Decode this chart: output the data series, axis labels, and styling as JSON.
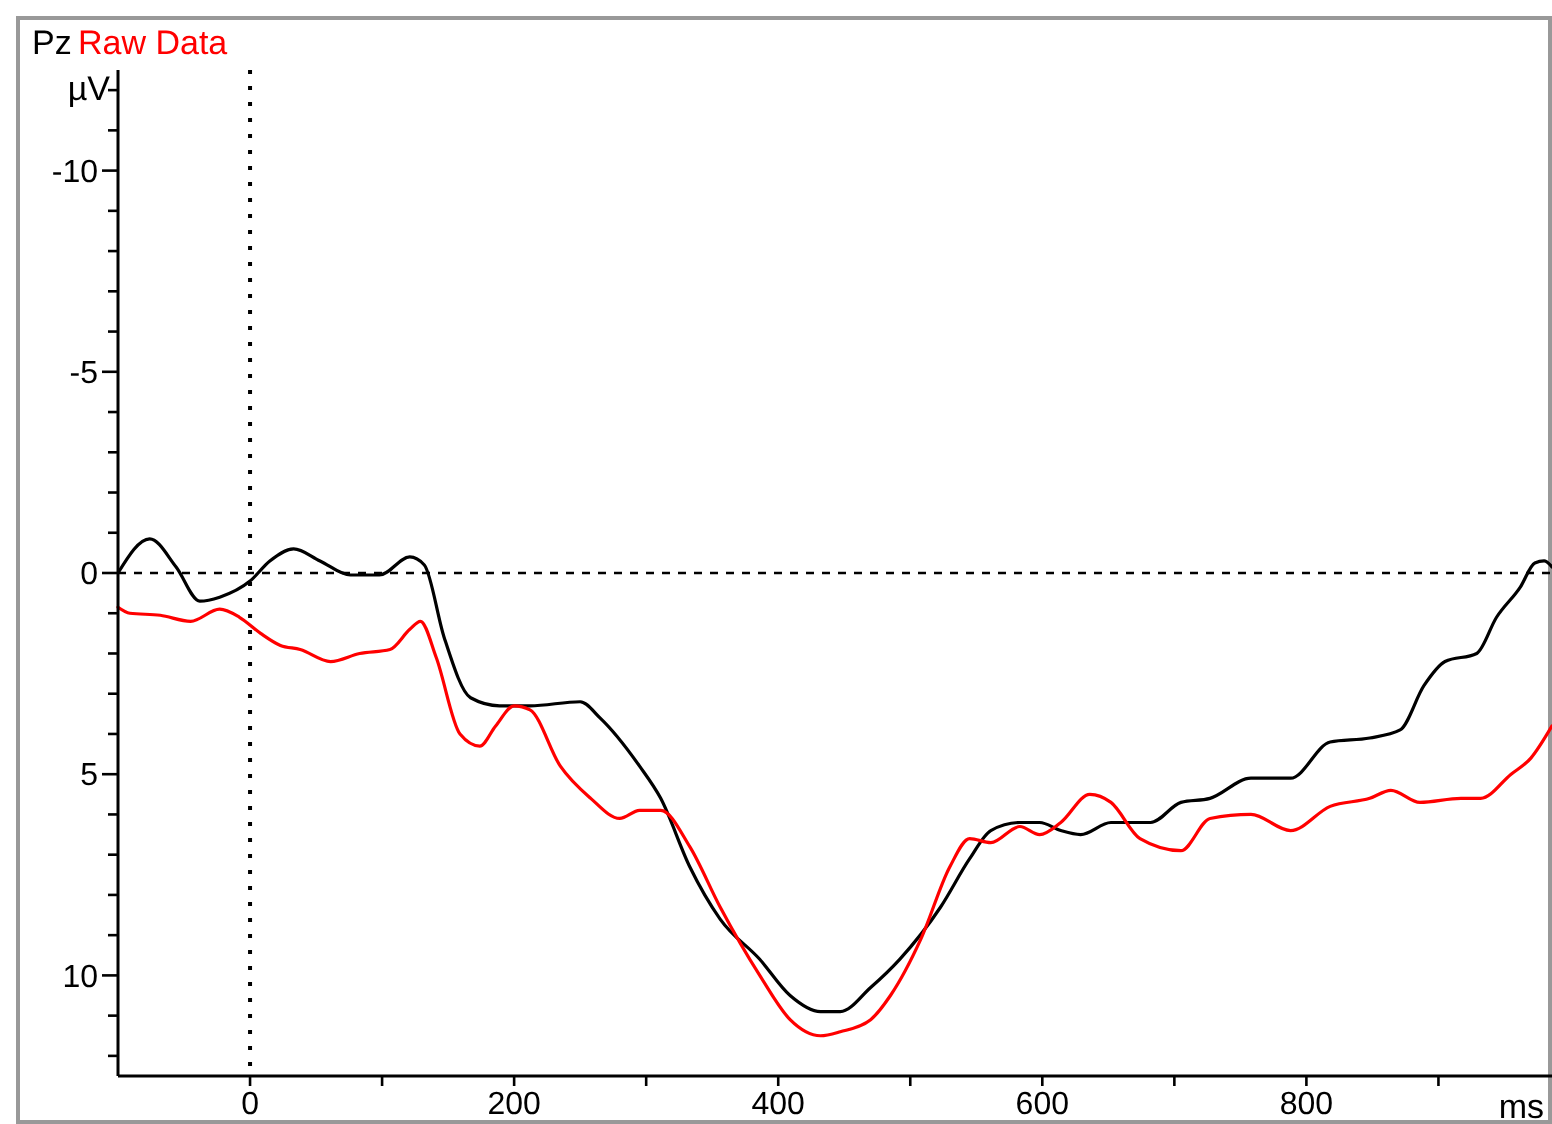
{
  "chart_data": {
    "type": "line",
    "title": "Pz",
    "xlabel": "ms",
    "ylabel": "µV",
    "xlim": [
      -100,
      986
    ],
    "ylim": [
      12.5,
      -12.5
    ],
    "xticks": [
      {
        "value": 0,
        "label": "0"
      },
      {
        "value": 100,
        "label": null
      },
      {
        "value": 200,
        "label": "200"
      },
      {
        "value": 300,
        "label": null
      },
      {
        "value": 400,
        "label": "400"
      },
      {
        "value": 500,
        "label": null
      },
      {
        "value": 600,
        "label": "600"
      },
      {
        "value": 700,
        "label": null
      },
      {
        "value": 800,
        "label": "800"
      },
      {
        "value": 900,
        "label": null
      }
    ],
    "yticks": [
      {
        "value": -12,
        "label": null
      },
      {
        "value": -11,
        "label": null
      },
      -10,
      {
        "value": -9,
        "label": null
      },
      {
        "value": -8,
        "label": null
      },
      {
        "value": -7,
        "label": null
      },
      {
        "value": -6,
        "label": null
      },
      -5,
      {
        "value": -4,
        "label": null
      },
      {
        "value": -3,
        "label": null
      },
      {
        "value": -2,
        "label": null
      },
      {
        "value": -1,
        "label": null
      },
      0,
      {
        "value": 1,
        "label": null
      },
      {
        "value": 2,
        "label": null
      },
      {
        "value": 3,
        "label": null
      },
      {
        "value": 4,
        "label": null
      },
      5,
      {
        "value": 6,
        "label": null
      },
      {
        "value": 7,
        "label": null
      },
      {
        "value": 8,
        "label": null
      },
      {
        "value": 9,
        "label": null
      },
      10,
      {
        "value": 11,
        "label": null
      },
      {
        "value": 12,
        "label": null
      }
    ],
    "grid": false,
    "legend": "top left",
    "line_style": "solid",
    "ref_lines": [
      {
        "axis": "y",
        "value": 0,
        "line_style": "dashed",
        "color": "#000000"
      },
      {
        "axis": "x",
        "value": 0,
        "line_style": "dotted",
        "color": "#000000"
      }
    ],
    "series": [
      {
        "color": "#000000",
        "x": [
          -100,
          -76,
          -56,
          -38,
          -23,
          0,
          15,
          33,
          53,
          76,
          98,
          121,
          132,
          147,
          167,
          189,
          212,
          250,
          265,
          295,
          311,
          333,
          356,
          386,
          409,
          432,
          447,
          470,
          492,
          523,
          545,
          561,
          583,
          598,
          614,
          629,
          652,
          682,
          705,
          727,
          758,
          788,
          818,
          848,
          871,
          889,
          905,
          929,
          944,
          962,
          973,
          980,
          986
        ],
        "values": [
          0,
          -0.85,
          -0.15,
          0.7,
          0.6,
          0.2,
          -0.3,
          -0.6,
          -0.3,
          0.05,
          0.05,
          -0.4,
          -0.2,
          1.6,
          3.1,
          3.3,
          3.3,
          3.2,
          3.6,
          4.8,
          5.6,
          7.3,
          8.6,
          9.6,
          10.5,
          10.9,
          10.9,
          10.3,
          9.6,
          8.3,
          7.1,
          6.4,
          6.2,
          6.2,
          6.4,
          6.5,
          6.2,
          6.2,
          5.7,
          5.6,
          5.1,
          5.1,
          4.2,
          4.1,
          3.9,
          2.8,
          2.2,
          2.0,
          1.1,
          0.35,
          -0.25,
          -0.3,
          -0.15
        ]
      },
      {
        "name": "Raw Data",
        "color": "#ff0000",
        "x": [
          -100,
          -91,
          -68,
          -45,
          -23,
          -8,
          8,
          23,
          38,
          61,
          83,
          106,
          121,
          129,
          141,
          159,
          174,
          186,
          200,
          212,
          235,
          258,
          280,
          295,
          311,
          333,
          356,
          386,
          409,
          432,
          447,
          470,
          485,
          508,
          530,
          545,
          561,
          583,
          598,
          614,
          636,
          652,
          674,
          705,
          727,
          758,
          788,
          818,
          848,
          864,
          886,
          917,
          932,
          955,
          970,
          986
        ],
        "values": [
          0.85,
          1.0,
          1.05,
          1.2,
          0.9,
          1.1,
          1.5,
          1.8,
          1.9,
          2.2,
          2.0,
          1.9,
          1.4,
          1.2,
          2.1,
          4.0,
          4.3,
          3.8,
          3.3,
          3.4,
          4.8,
          5.6,
          6.1,
          5.9,
          5.9,
          6.8,
          8.3,
          10.0,
          11.1,
          11.5,
          11.4,
          11.1,
          10.5,
          9.1,
          7.3,
          6.6,
          6.7,
          6.3,
          6.5,
          6.2,
          5.5,
          5.7,
          6.6,
          6.9,
          6.1,
          6.0,
          6.4,
          5.8,
          5.6,
          5.4,
          5.7,
          5.6,
          5.6,
          5.0,
          4.6,
          3.8
        ]
      }
    ]
  }
}
